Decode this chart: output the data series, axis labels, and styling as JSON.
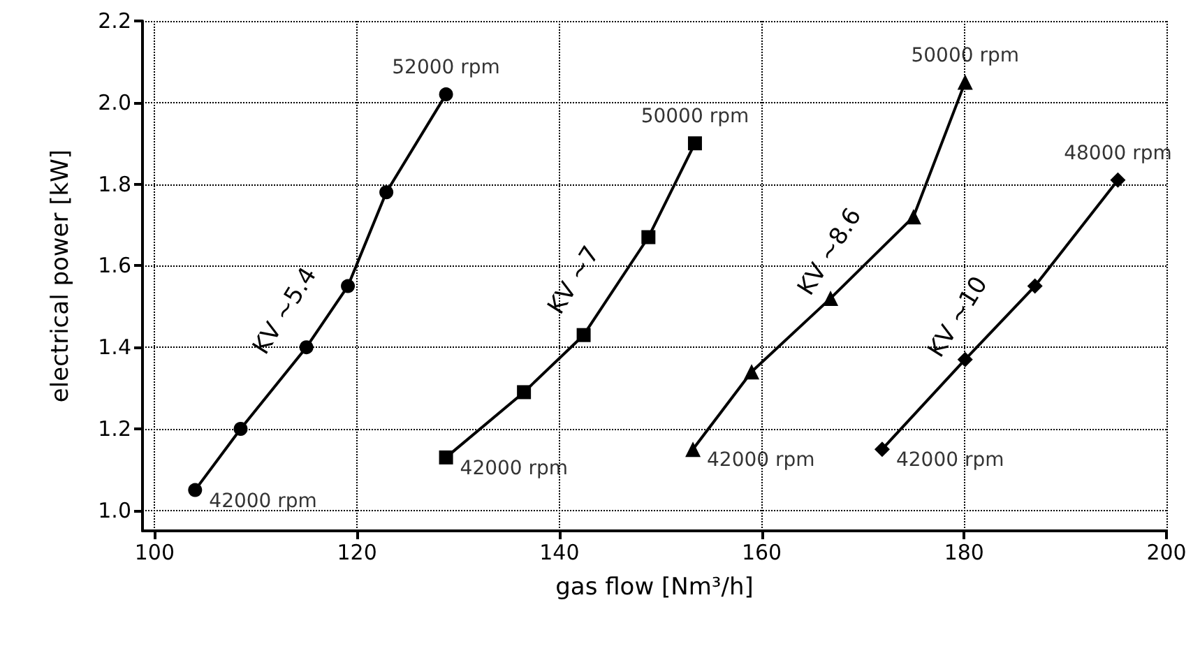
{
  "chart_data": {
    "type": "line",
    "xlabel": "gas flow [Nm³/h]",
    "ylabel": "electrical power [kW]",
    "xlim": [
      98.8,
      200
    ],
    "xticks": [
      100,
      120,
      140,
      160,
      180,
      200
    ],
    "ylim": [
      0.95,
      2.2
    ],
    "yticks": [
      {
        "value": 1,
        "label": "1.0"
      },
      1.2,
      1.4,
      1.6,
      1.8,
      {
        "value": 2,
        "label": "2.0"
      },
      2.2
    ],
    "grid": true,
    "legend": false,
    "line_style": "solid",
    "series": [
      {
        "name": "KV ~5.4",
        "color": "#000000",
        "marker": "circle",
        "x": [
          104,
          108.5,
          115,
          119.1,
          122.9,
          128.8
        ],
        "values": [
          1.05,
          1.2,
          1.4,
          1.55,
          1.78,
          2.02
        ]
      },
      {
        "name": "KV ~7",
        "color": "#000000",
        "marker": "square",
        "x": [
          128.8,
          136.5,
          142.4,
          148.8,
          153.4
        ],
        "values": [
          1.13,
          1.29,
          1.43,
          1.67,
          1.9
        ]
      },
      {
        "name": "KV ~8.6",
        "color": "#000000",
        "marker": "triangle",
        "x": [
          153.2,
          159,
          166.8,
          175,
          180.1
        ],
        "values": [
          1.15,
          1.34,
          1.52,
          1.72,
          2.05
        ]
      },
      {
        "name": "KV ~10",
        "color": "#000000",
        "marker": "diamond",
        "x": [
          171.9,
          180.1,
          187,
          195.2
        ],
        "values": [
          1.15,
          1.37,
          1.55,
          1.81
        ]
      }
    ],
    "annotations": [
      {
        "text": "42000 rpm",
        "x": 104,
        "y": 1.05
      },
      {
        "text": "52000 rpm",
        "x": 128.8,
        "y": 2.02
      },
      {
        "text": "42000 rpm",
        "x": 128.8,
        "y": 1.13
      },
      {
        "text": "50000 rpm",
        "x": 153.4,
        "y": 1.9
      },
      {
        "text": "42000 rpm",
        "x": 153.2,
        "y": 1.15
      },
      {
        "text": "50000 rpm",
        "x": 180.1,
        "y": 2.05
      },
      {
        "text": "42000 rpm",
        "x": 171.9,
        "y": 1.15
      },
      {
        "text": "48000 rpm",
        "x": 195.2,
        "y": 1.81
      }
    ]
  }
}
